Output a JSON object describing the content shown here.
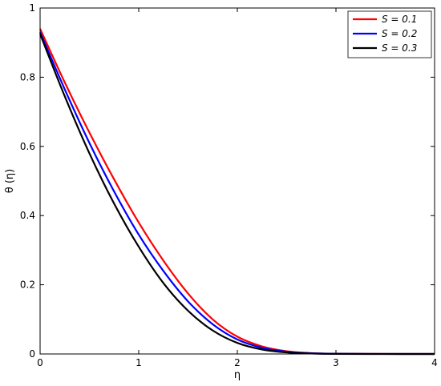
{
  "chart_data": {
    "type": "line",
    "title": "",
    "xlabel": "η",
    "ylabel": "θ (η)",
    "xlim": [
      0,
      4
    ],
    "ylim": [
      0,
      1
    ],
    "xticks": [
      "0",
      "1",
      "2",
      "3",
      "4"
    ],
    "yticks": [
      "0",
      "0.2",
      "0.4",
      "0.6",
      "0.8",
      "1"
    ],
    "grid": false,
    "legend_position": "top-right",
    "x": [
      0,
      0.25,
      0.5,
      0.75,
      1.0,
      1.25,
      1.5,
      1.75,
      2.0,
      2.25,
      2.5,
      2.75,
      3.0,
      3.5,
      4.0
    ],
    "series": [
      {
        "name": "S = 0.1",
        "color": "#ff0000",
        "values": [
          0.94,
          0.785,
          0.64,
          0.505,
          0.38,
          0.27,
          0.175,
          0.1,
          0.05,
          0.022,
          0.008,
          0.0025,
          0.0007,
          0.0001,
          0.0
        ]
      },
      {
        "name": "S = 0.2",
        "color": "#0000ff",
        "values": [
          0.93,
          0.765,
          0.61,
          0.47,
          0.345,
          0.24,
          0.152,
          0.086,
          0.042,
          0.018,
          0.0065,
          0.002,
          0.0005,
          0.0001,
          0.0
        ]
      },
      {
        "name": "S = 0.3",
        "color": "#000000",
        "values": [
          0.925,
          0.745,
          0.58,
          0.435,
          0.31,
          0.205,
          0.125,
          0.068,
          0.032,
          0.013,
          0.0045,
          0.0013,
          0.0003,
          0.0,
          0.0
        ]
      }
    ]
  }
}
